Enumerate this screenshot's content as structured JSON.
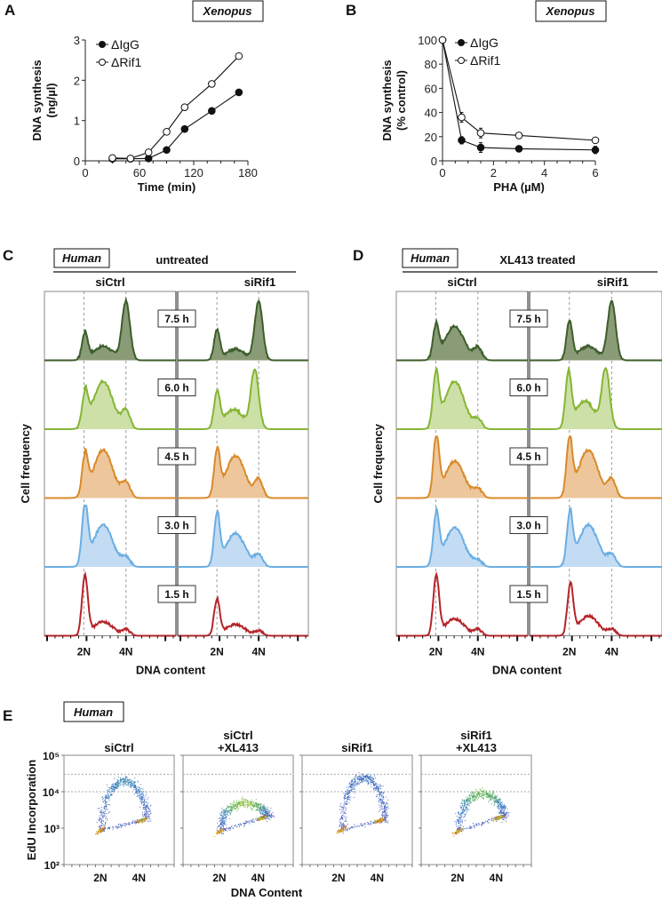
{
  "figure": {
    "panels": [
      "A",
      "B",
      "C",
      "D",
      "E"
    ]
  },
  "chart_data": [
    {
      "id": "A",
      "type": "line",
      "panel_label": "A",
      "species": "Xenopus",
      "title": "",
      "xlabel": "Time (min)",
      "ylabel": "DNA synthesis (ng/µl)",
      "ylabel_lines": [
        "DNA synthesis",
        "(ng/µl)"
      ],
      "xlim": [
        0,
        180
      ],
      "ylim": [
        0,
        3
      ],
      "xticks": [
        0,
        60,
        120,
        180
      ],
      "yticks": [
        0,
        1,
        2,
        3
      ],
      "legend_position": "top-left",
      "x": [
        30,
        50,
        70,
        90,
        110,
        140,
        170
      ],
      "series": [
        {
          "name": "ΔIgG",
          "marker": "filled-circle",
          "values": [
            0.05,
            0.05,
            0.06,
            0.27,
            0.79,
            1.24,
            1.7
          ]
        },
        {
          "name": "ΔRif1",
          "marker": "open-circle",
          "values": [
            0.07,
            0.06,
            0.21,
            0.72,
            1.33,
            1.91,
            2.6
          ]
        }
      ]
    },
    {
      "id": "B",
      "type": "line",
      "panel_label": "B",
      "species": "Xenopus",
      "title": "",
      "xlabel": "PHA (µM)",
      "ylabel": "DNA synthesis (% control)",
      "ylabel_lines": [
        "DNA synthesis",
        "(% control)"
      ],
      "xlim": [
        0,
        6
      ],
      "ylim": [
        0,
        100
      ],
      "xticks": [
        0,
        2,
        4,
        6
      ],
      "yticks": [
        0,
        20,
        40,
        60,
        80,
        100
      ],
      "legend_position": "top-left",
      "x": [
        0,
        0.75,
        1.5,
        3,
        6
      ],
      "series": [
        {
          "name": "ΔIgG",
          "marker": "filled-circle",
          "values": [
            100,
            17,
            11,
            10,
            9
          ],
          "errors": [
            0,
            3,
            4,
            1,
            3
          ]
        },
        {
          "name": "ΔRif1",
          "marker": "open-circle",
          "values": [
            100,
            36,
            23,
            21,
            17
          ],
          "errors": [
            0,
            4,
            4,
            1,
            1
          ]
        }
      ]
    },
    {
      "id": "C",
      "type": "area",
      "panel_label": "C",
      "species": "Human",
      "treatment": "untreated",
      "conditions": [
        "siCtrl",
        "siRif1"
      ],
      "xlabel": "DNA content",
      "ylabel": "Cell frequency",
      "xtick_labels": [
        "2N",
        "4N"
      ],
      "timepoints": [
        "7.5 h",
        "6.0 h",
        "4.5 h",
        "3.0 h",
        "1.5 h"
      ],
      "series": [
        {
          "name": "7.5 h",
          "color": "#3d5e2a",
          "fill": "#8a9b78",
          "siCtrl": {
            "g1": 0.45,
            "s": 0.25,
            "g2": 1.0,
            "g1pos": 0.15,
            "g2pos": 0.95
          },
          "siRif1": {
            "g1": 0.5,
            "s": 0.2,
            "g2": 1.0,
            "g1pos": 0.1,
            "g2pos": 0.95
          }
        },
        {
          "name": "6.0 h",
          "color": "#86b534",
          "fill": "#cde0a8",
          "siCtrl": {
            "g1": 0.55,
            "s": 0.85,
            "g2": 0.3,
            "g1pos": 0.15,
            "g2pos": 0.95
          },
          "siRif1": {
            "g1": 0.6,
            "s": 0.35,
            "g2": 1.0,
            "g1pos": 0.1,
            "g2pos": 0.85
          }
        },
        {
          "name": "4.5 h",
          "color": "#d98a2b",
          "fill": "#edc79b",
          "siCtrl": {
            "g1": 0.65,
            "s": 0.85,
            "g2": 0.25,
            "g1pos": 0.15,
            "g2pos": 0.95
          },
          "siRif1": {
            "g1": 0.75,
            "s": 0.75,
            "g2": 0.3,
            "g1pos": 0.1,
            "g2pos": 0.95
          }
        },
        {
          "name": "3.0 h",
          "color": "#6aaee3",
          "fill": "#c4dcf3",
          "siCtrl": {
            "g1": 1.0,
            "s": 0.75,
            "g2": 0.15,
            "g1pos": 0.15,
            "g2pos": 0.95
          },
          "siRif1": {
            "g1": 0.85,
            "s": 0.6,
            "g2": 0.2,
            "g1pos": 0.1,
            "g2pos": 0.95
          }
        },
        {
          "name": "1.5 h",
          "color": "#b5242a",
          "fill": "none",
          "siCtrl": {
            "g1": 1.0,
            "s": 0.25,
            "g2": 0.1,
            "g1pos": 0.15,
            "g2pos": 0.95
          },
          "siRif1": {
            "g1": 0.6,
            "s": 0.2,
            "g2": 0.08,
            "g1pos": 0.1,
            "g2pos": 0.95
          }
        }
      ]
    },
    {
      "id": "D",
      "type": "area",
      "panel_label": "D",
      "species": "Human",
      "treatment": "XL413 treated",
      "conditions": [
        "siCtrl",
        "siRif1"
      ],
      "xlabel": "DNA content",
      "ylabel": "Cell frequency",
      "xtick_labels": [
        "2N",
        "4N"
      ],
      "timepoints": [
        "7.5 h",
        "6.0 h",
        "4.5 h",
        "3.0 h",
        "1.5 h"
      ],
      "series": [
        {
          "name": "7.5 h",
          "color": "#3d5e2a",
          "fill": "#8a9b78",
          "siCtrl": {
            "g1": 0.55,
            "s": 0.6,
            "g2": 0.2,
            "g1pos": 0.1,
            "g2pos": 0.95
          },
          "siRif1": {
            "g1": 0.65,
            "s": 0.25,
            "g2": 1.0,
            "g1pos": 0.1,
            "g2pos": 0.95
          }
        },
        {
          "name": "6.0 h",
          "color": "#86b534",
          "fill": "#cde0a8",
          "siCtrl": {
            "g1": 0.9,
            "s": 0.85,
            "g2": 0.15,
            "g1pos": 0.1,
            "g2pos": 0.95
          },
          "siRif1": {
            "g1": 0.9,
            "s": 0.5,
            "g2": 1.0,
            "g1pos": 0.05,
            "g2pos": 0.8
          }
        },
        {
          "name": "4.5 h",
          "color": "#d98a2b",
          "fill": "#edc79b",
          "siCtrl": {
            "g1": 1.0,
            "s": 0.65,
            "g2": 0.15,
            "g1pos": 0.12,
            "g2pos": 0.95
          },
          "siRif1": {
            "g1": 0.95,
            "s": 0.85,
            "g2": 0.3,
            "g1pos": 0.1,
            "g2pos": 0.95
          }
        },
        {
          "name": "3.0 h",
          "color": "#6aaee3",
          "fill": "#c4dcf3",
          "siCtrl": {
            "g1": 0.85,
            "s": 0.7,
            "g2": 0.1,
            "g1pos": 0.12,
            "g2pos": 0.95
          },
          "siRif1": {
            "g1": 0.85,
            "s": 0.75,
            "g2": 0.2,
            "g1pos": 0.12,
            "g2pos": 0.95
          }
        },
        {
          "name": "1.5 h",
          "color": "#b5242a",
          "fill": "none",
          "siCtrl": {
            "g1": 1.0,
            "s": 0.3,
            "g2": 0.1,
            "g1pos": 0.12,
            "g2pos": 0.95
          },
          "siRif1": {
            "g1": 0.85,
            "s": 0.35,
            "g2": 0.1,
            "g1pos": 0.15,
            "g2pos": 0.95
          }
        }
      ]
    },
    {
      "id": "E",
      "type": "scatter",
      "panel_label": "E",
      "species": "Human",
      "xlabel": "DNA Content",
      "ylabel": "EdU Incorporation",
      "ytick_labels": [
        "10⁵",
        "10⁴",
        "10³",
        "10²"
      ],
      "y_log_range": [
        2,
        5
      ],
      "xtick_labels": [
        "2N",
        "4N"
      ],
      "gate_lines_log": [
        4.48,
        4.0
      ],
      "plots": [
        {
          "title_lines": [
            "",
            "siCtrl"
          ],
          "g1": {
            "x": 0.33,
            "y": 2.95
          },
          "g2": {
            "x": 0.7,
            "y": 3.22
          },
          "s_peak": {
            "x": 0.62,
            "y": 4.3
          },
          "s_density": 0.6
        },
        {
          "title_lines": [
            "siCtrl",
            "+XL413"
          ],
          "g1": {
            "x": 0.33,
            "y": 2.92
          },
          "g2": {
            "x": 0.72,
            "y": 3.3
          },
          "s_peak": {
            "x": 0.52,
            "y": 3.7
          },
          "s_density": 1.0
        },
        {
          "title_lines": [
            "",
            "siRif1"
          ],
          "g1": {
            "x": 0.35,
            "y": 2.95
          },
          "g2": {
            "x": 0.7,
            "y": 3.22
          },
          "s_peak": {
            "x": 0.55,
            "y": 4.4
          },
          "s_density": 0.35
        },
        {
          "title_lines": [
            "siRif1",
            "+XL413"
          ],
          "g1": {
            "x": 0.33,
            "y": 2.92
          },
          "g2": {
            "x": 0.7,
            "y": 3.3
          },
          "s_peak": {
            "x": 0.62,
            "y": 3.95
          },
          "s_density": 0.9
        }
      ]
    }
  ]
}
